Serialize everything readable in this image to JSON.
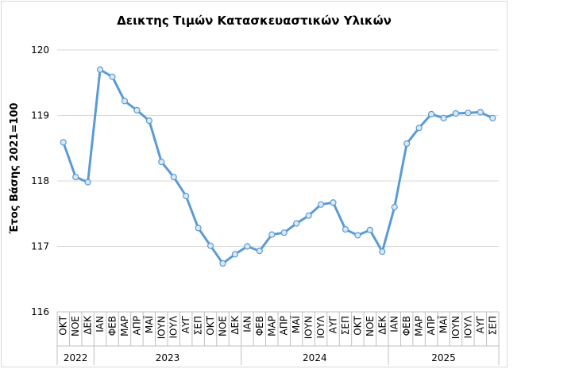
{
  "chart_data": {
    "type": "line",
    "title": "Δεικτης Τιμών Κατασκευαστικών Υλικών",
    "y_label": "Έτος Βάσης 2021=100",
    "groups": [
      {
        "name": "2022",
        "categories": [
          "ΟΚΤ",
          "ΝΟΕ",
          "ΔΕΚ"
        ]
      },
      {
        "name": "2023",
        "categories": [
          "ΙΑΝ",
          "ΦΕΒ",
          "ΜΑΡ",
          "ΑΠΡ",
          "ΜΑΪ",
          "ΙΟΥΝ",
          "ΙΟΥΛ",
          "ΑΥΓ",
          "ΣΕΠ",
          "ΟΚΤ",
          "ΝΟΕ",
          "ΔΕΚ"
        ]
      },
      {
        "name": "2024",
        "categories": [
          "ΙΑΝ",
          "ΦΕΒ",
          "ΜΑΡ",
          "ΑΠΡ",
          "ΜΑΪ",
          "ΙΟΥΝ",
          "ΙΟΥΛ",
          "ΑΥΓ",
          "ΣΕΠ",
          "ΟΚΤ",
          "ΝΟΕ",
          "ΔΕΚ"
        ]
      },
      {
        "name": "2025",
        "categories": [
          "ΙΑΝ",
          "ΦΕΒ",
          "ΜΑΡ",
          "ΑΠΡ",
          "ΜΑΪ",
          "ΙΟΥΝ",
          "ΙΟΥΛ",
          "ΑΥΓ",
          "ΣΕΠ"
        ]
      }
    ],
    "values": [
      118.59,
      118.06,
      117.98,
      119.7,
      119.59,
      119.22,
      119.08,
      118.92,
      118.29,
      118.06,
      117.77,
      117.28,
      117.01,
      116.74,
      116.88,
      117.0,
      116.93,
      117.18,
      117.21,
      117.35,
      117.47,
      117.64,
      117.67,
      117.26,
      117.17,
      117.25,
      116.92,
      117.6,
      118.57,
      118.81,
      119.02,
      118.96,
      119.03,
      119.04,
      119.05,
      118.96
    ],
    "color": "#5b9bd5",
    "ylim": [
      116,
      120
    ],
    "yticks": [
      116,
      117,
      118,
      119,
      120
    ],
    "grid": true
  }
}
